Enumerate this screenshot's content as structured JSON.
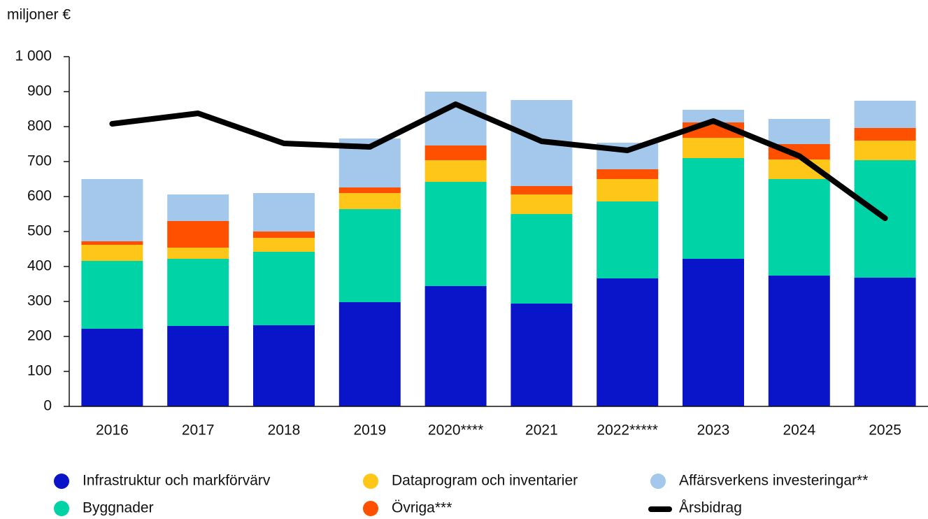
{
  "chart_data": {
    "type": "bar",
    "stacked": true,
    "ylabel": "miljoner €",
    "categories": [
      "2016",
      "2017",
      "2018",
      "2019",
      "2020****",
      "2021",
      "2022*****",
      "2023",
      "2024",
      "2025"
    ],
    "ylim": [
      0,
      1000
    ],
    "yticks": [
      0,
      100,
      200,
      300,
      400,
      500,
      600,
      700,
      800,
      900,
      {
        "value": 1000,
        "label": "1 000"
      }
    ],
    "series": [
      {
        "name": "Infrastruktur och markförvärv",
        "color": "#0a14c8",
        "type": "bar",
        "values": [
          222,
          230,
          232,
          298,
          344,
          294,
          366,
          422,
          374,
          368
        ]
      },
      {
        "name": "Byggnader",
        "color": "#00d4a6",
        "type": "bar",
        "values": [
          194,
          192,
          210,
          266,
          298,
          256,
          220,
          288,
          276,
          336
        ]
      },
      {
        "name": "Dataprogram och inventarier",
        "color": "#ffc61a",
        "type": "bar",
        "values": [
          46,
          32,
          40,
          46,
          62,
          56,
          64,
          58,
          56,
          56
        ]
      },
      {
        "name": "Övriga***",
        "color": "#ff5000",
        "type": "bar",
        "values": [
          10,
          76,
          18,
          16,
          42,
          24,
          28,
          44,
          44,
          36
        ]
      },
      {
        "name": "Affärsverkens investeringar**",
        "color": "#a3c8eb",
        "type": "bar",
        "values": [
          178,
          76,
          110,
          140,
          154,
          246,
          76,
          36,
          72,
          78
        ]
      },
      {
        "name": "Årsbidrag",
        "color": "#000000",
        "type": "line",
        "values": [
          808,
          838,
          752,
          742,
          864,
          758,
          732,
          816,
          716,
          538
        ]
      }
    ]
  }
}
